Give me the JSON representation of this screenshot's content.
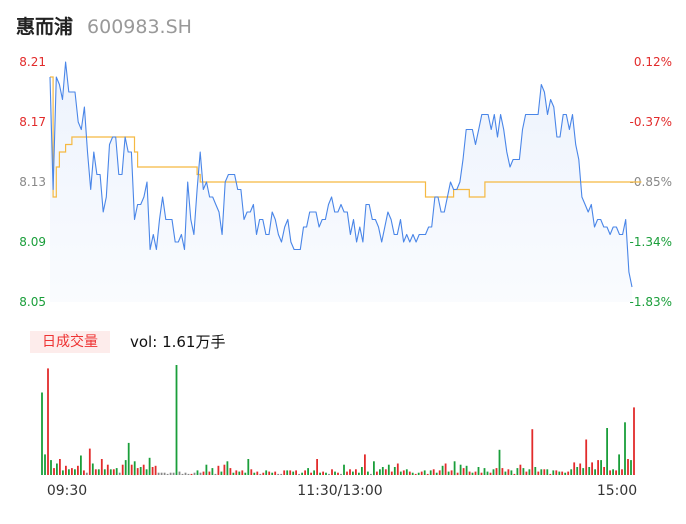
{
  "header": {
    "name": "惠而浦",
    "code": "600983.SH"
  },
  "volume_panel": {
    "badge": "日成交量",
    "label": "vol:",
    "value": "1.61万手"
  },
  "colors": {
    "price_line": "#4a86e8",
    "avg_line": "#f5b942",
    "up": "#e22b2b",
    "down": "#1a9e3a",
    "flat": "#888888"
  },
  "chart_data": [
    {
      "type": "line",
      "title": "",
      "x_ticks": [
        "09:30",
        "11:30/13:00",
        "15:00"
      ],
      "y_ticks_left": [
        "8.21",
        "8.17",
        "8.13",
        "8.09",
        "8.05"
      ],
      "y_ticks_right": [
        "0.12%",
        "-0.37%",
        "-0.85%",
        "-1.34%",
        "-1.83%"
      ],
      "ylim": [
        8.05,
        8.21
      ],
      "prev_close": 8.2,
      "series": [
        {
          "role": "price",
          "values": [
            8.2,
            8.125,
            8.2,
            8.195,
            8.185,
            8.21,
            8.19,
            8.19,
            8.19,
            8.17,
            8.165,
            8.18,
            8.15,
            8.125,
            8.15,
            8.135,
            8.135,
            8.11,
            8.12,
            8.155,
            8.16,
            8.16,
            8.135,
            8.135,
            8.16,
            8.15,
            8.15,
            8.105,
            8.115,
            8.115,
            8.12,
            8.13,
            8.085,
            8.095,
            8.085,
            8.105,
            8.12,
            8.105,
            8.105,
            8.105,
            8.09,
            8.09,
            8.095,
            8.085,
            8.13,
            8.105,
            8.095,
            8.125,
            8.15,
            8.125,
            8.13,
            8.12,
            8.12,
            8.115,
            8.11,
            8.095,
            8.13,
            8.135,
            8.135,
            8.135,
            8.125,
            8.125,
            8.105,
            8.11,
            8.11,
            8.115,
            8.095,
            8.105,
            8.105,
            8.095,
            8.095,
            8.11,
            8.105,
            8.095,
            8.09,
            8.1,
            8.105,
            8.09,
            8.085,
            8.085,
            8.085,
            8.1,
            8.1,
            8.11,
            8.11,
            8.11,
            8.1,
            8.105,
            8.105,
            8.115,
            8.12,
            8.11,
            8.11,
            8.115,
            8.11,
            8.11,
            8.095,
            8.105,
            8.09,
            8.1,
            8.09,
            8.115,
            8.115,
            8.105,
            8.105,
            8.1,
            8.09,
            8.1,
            8.11,
            8.105,
            8.095,
            8.095,
            8.105,
            8.09,
            8.095,
            8.09,
            8.095,
            8.09,
            8.095,
            8.095,
            8.095,
            8.1,
            8.1,
            8.12,
            8.12,
            8.11,
            8.11,
            8.12,
            8.13,
            8.125,
            8.125,
            8.13,
            8.145,
            8.165,
            8.165,
            8.165,
            8.155,
            8.165,
            8.175,
            8.175,
            8.175,
            8.165,
            8.175,
            8.16,
            8.175,
            8.165,
            8.15,
            8.14,
            8.145,
            8.145,
            8.145,
            8.165,
            8.175,
            8.175,
            8.175,
            8.175,
            8.175,
            8.195,
            8.19,
            8.175,
            8.185,
            8.18,
            8.16,
            8.16,
            8.175,
            8.175,
            8.165,
            8.175,
            8.155,
            8.145,
            8.12,
            8.115,
            8.11,
            8.115,
            8.1,
            8.105,
            8.105,
            8.1,
            8.1,
            8.095,
            8.1,
            8.1,
            8.095,
            8.095,
            8.105,
            8.07,
            8.06
          ]
        },
        {
          "role": "average",
          "values": [
            8.2,
            8.12,
            8.14,
            8.15,
            8.15,
            8.155,
            8.155,
            8.16,
            8.16,
            8.16,
            8.16,
            8.16,
            8.16,
            8.16,
            8.16,
            8.16,
            8.16,
            8.16,
            8.16,
            8.16,
            8.16,
            8.16,
            8.16,
            8.16,
            8.16,
            8.16,
            8.16,
            8.15,
            8.14,
            8.14,
            8.14,
            8.14,
            8.14,
            8.14,
            8.14,
            8.14,
            8.14,
            8.14,
            8.14,
            8.14,
            8.14,
            8.14,
            8.14,
            8.14,
            8.14,
            8.14,
            8.14,
            8.135,
            8.13,
            8.13,
            8.13,
            8.13,
            8.13,
            8.13,
            8.13,
            8.13,
            8.13,
            8.13,
            8.13,
            8.13,
            8.13,
            8.13,
            8.13,
            8.13,
            8.13,
            8.13,
            8.13,
            8.13,
            8.13,
            8.13,
            8.13,
            8.13,
            8.13,
            8.13,
            8.13,
            8.13,
            8.13,
            8.13,
            8.13,
            8.13,
            8.13,
            8.13,
            8.13,
            8.13,
            8.13,
            8.13,
            8.13,
            8.13,
            8.13,
            8.13,
            8.13,
            8.13,
            8.13,
            8.13,
            8.13,
            8.13,
            8.13,
            8.13,
            8.13,
            8.13,
            8.13,
            8.13,
            8.13,
            8.13,
            8.13,
            8.13,
            8.13,
            8.13,
            8.13,
            8.13,
            8.13,
            8.13,
            8.13,
            8.13,
            8.13,
            8.13,
            8.13,
            8.13,
            8.13,
            8.13,
            8.12,
            8.12,
            8.12,
            8.12,
            8.12,
            8.12,
            8.12,
            8.12,
            8.12,
            8.125,
            8.125,
            8.125,
            8.125,
            8.125,
            8.12,
            8.12,
            8.12,
            8.12,
            8.12,
            8.13,
            8.13,
            8.13,
            8.13,
            8.13,
            8.13,
            8.13,
            8.13,
            8.13,
            8.13,
            8.13,
            8.13,
            8.13,
            8.13,
            8.13,
            8.13,
            8.13,
            8.13,
            8.13,
            8.13,
            8.13,
            8.13,
            8.13,
            8.13,
            8.13,
            8.13,
            8.13,
            8.13,
            8.13,
            8.13,
            8.13,
            8.13,
            8.13,
            8.13,
            8.13,
            8.13,
            8.13,
            8.13,
            8.13,
            8.13,
            8.13,
            8.13,
            8.13,
            8.13,
            8.13,
            8.13,
            8.13,
            8.13,
            8.13,
            8.13,
            8.13
          ]
        }
      ]
    },
    {
      "type": "bar",
      "title": "",
      "x_ticks": [
        "09:30",
        "11:30/13:00",
        "15:00"
      ],
      "values": [
        0.72,
        0.18,
        0.93,
        0.13,
        0.06,
        0.1,
        0.14,
        0.04,
        0.08,
        0.05,
        0.06,
        0.05,
        0.08,
        0.17,
        0.04,
        0.02,
        0.23,
        0.1,
        0.05,
        0.05,
        0.14,
        0.05,
        0.09,
        0.05,
        0.05,
        0.06,
        0.02,
        0.09,
        0.13,
        0.28,
        0.09,
        0.12,
        0.06,
        0.07,
        0.09,
        0.05,
        0.15,
        0.07,
        0.08,
        0.02,
        0.02,
        0.02,
        0.01,
        0.02,
        0.02,
        0.96,
        0.03,
        0.01,
        0.02,
        0.01,
        0.01,
        0.02,
        0.04,
        0.02,
        0.03,
        0.09,
        0.03,
        0.06,
        0.01,
        0.08,
        0.03,
        0.09,
        0.12,
        0.06,
        0.02,
        0.04,
        0.03,
        0.04,
        0.02,
        0.14,
        0.05,
        0.02,
        0.03,
        0.01,
        0.02,
        0.04,
        0.03,
        0.02,
        0.03,
        0.01,
        0.01,
        0.04,
        0.04,
        0.04,
        0.03,
        0.04,
        0.01,
        0.02,
        0.04,
        0.06,
        0.02,
        0.04,
        0.14,
        0.02,
        0.03,
        0.02,
        0.01,
        0.05,
        0.03,
        0.02,
        0.01,
        0.09,
        0.03,
        0.05,
        0.03,
        0.05,
        0.02,
        0.07,
        0.18,
        0.03,
        0.01,
        0.12,
        0.03,
        0.05,
        0.07,
        0.05,
        0.09,
        0.03,
        0.07,
        0.1,
        0.03,
        0.04,
        0.05,
        0.03,
        0.02,
        0.01,
        0.02,
        0.03,
        0.04,
        0.01,
        0.04,
        0.05,
        0.02,
        0.04,
        0.08,
        0.1,
        0.03,
        0.04,
        0.12,
        0.02,
        0.09,
        0.06,
        0.08,
        0.03,
        0.02,
        0.03,
        0.07,
        0.02,
        0.06,
        0.03,
        0.02,
        0.05,
        0.06,
        0.22,
        0.06,
        0.03,
        0.05,
        0.04,
        0.01,
        0.06,
        0.09,
        0.06,
        0.03,
        0.05,
        0.4,
        0.07,
        0.03,
        0.05,
        0.05,
        0.05,
        0.01,
        0.04,
        0.04,
        0.03,
        0.03,
        0.02,
        0.03,
        0.05,
        0.11,
        0.07,
        0.1,
        0.06,
        0.31,
        0.07,
        0.11,
        0.05,
        0.13,
        0.13,
        0.07,
        0.41,
        0.04,
        0.05,
        0.04,
        0.18,
        0.05,
        0.46,
        0.14,
        0.13,
        0.59
      ],
      "directions": [
        "down",
        "down",
        "up",
        "down",
        "up",
        "down",
        "up",
        "down",
        "up",
        "down",
        "up",
        "down",
        "up",
        "down",
        "up",
        "flat",
        "up",
        "down",
        "up",
        "down",
        "up",
        "down",
        "up",
        "down",
        "up",
        "down",
        "flat",
        "up",
        "down",
        "down",
        "up",
        "down",
        "up",
        "down",
        "up",
        "down",
        "down",
        "up",
        "up",
        "flat",
        "flat",
        "flat",
        "flat",
        "flat",
        "flat",
        "down",
        "flat",
        "flat",
        "flat",
        "flat",
        "up",
        "flat",
        "down",
        "flat",
        "up",
        "down",
        "up",
        "down",
        "flat",
        "up",
        "down",
        "up",
        "down",
        "up",
        "down",
        "up",
        "down",
        "up",
        "down",
        "down",
        "up",
        "down",
        "up",
        "flat",
        "up",
        "down",
        "up",
        "down",
        "up",
        "flat",
        "flat",
        "up",
        "down",
        "up",
        "down",
        "up",
        "flat",
        "down",
        "up",
        "down",
        "up",
        "down",
        "up",
        "down",
        "up",
        "down",
        "flat",
        "up",
        "down",
        "up",
        "flat",
        "down",
        "up",
        "up",
        "down",
        "up",
        "down",
        "down",
        "up",
        "down",
        "flat",
        "down",
        "up",
        "down",
        "down",
        "up",
        "down",
        "up",
        "down",
        "up",
        "down",
        "up",
        "down",
        "up",
        "down",
        "up",
        "down",
        "up",
        "down",
        "up",
        "down",
        "up",
        "down",
        "up",
        "down",
        "up",
        "down",
        "up",
        "down",
        "up",
        "down",
        "up",
        "down",
        "up",
        "down",
        "up",
        "down",
        "up",
        "down",
        "down",
        "up",
        "down",
        "up",
        "down",
        "up",
        "down",
        "up",
        "down",
        "up",
        "down",
        "up",
        "down",
        "up",
        "down",
        "up",
        "down",
        "up",
        "down",
        "up",
        "down",
        "up",
        "down",
        "up",
        "down",
        "up",
        "down",
        "up",
        "down",
        "up",
        "down",
        "up",
        "down",
        "up",
        "down",
        "up",
        "down",
        "up",
        "down",
        "up",
        "down",
        "up",
        "down",
        "up",
        "down",
        "up",
        "down",
        "up",
        "down",
        "up",
        "down",
        "up",
        "down",
        "up",
        "down",
        "flat"
      ]
    }
  ]
}
